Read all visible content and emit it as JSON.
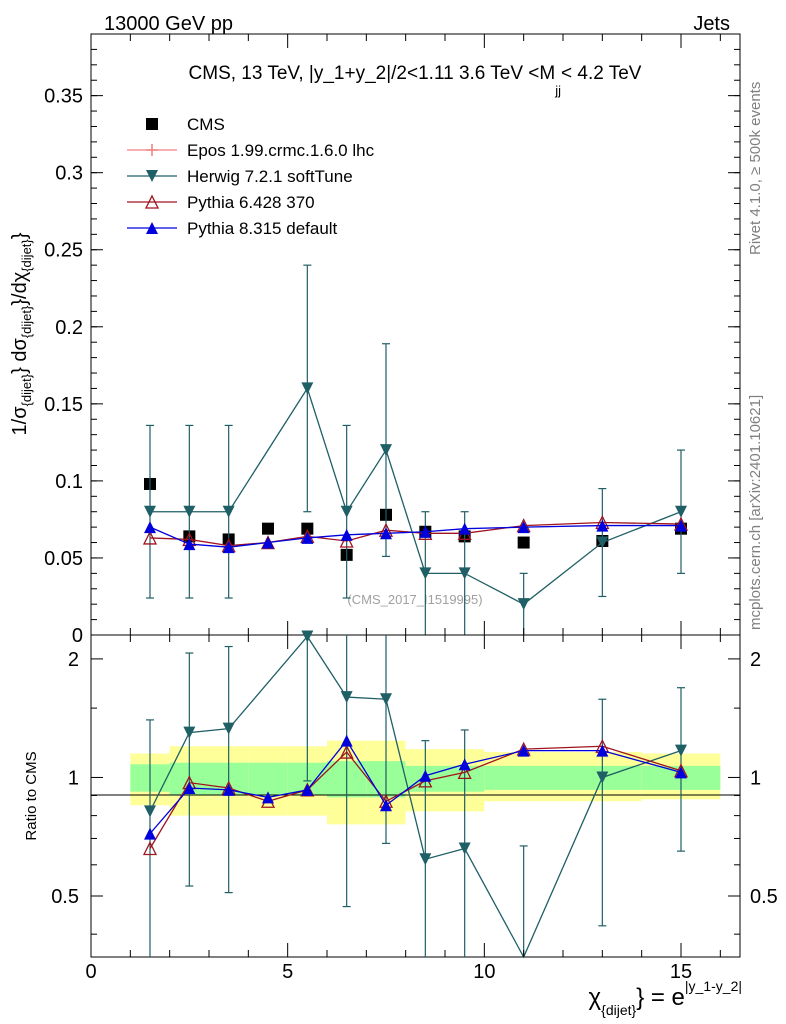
{
  "header": {
    "left": "13000 GeV pp",
    "right": "Jets"
  },
  "side_labels": {
    "rivet": "Rivet 4.1.0, ≥ 500k events",
    "mcplots": "mcplots.cern.ch [arXiv:2401.10621]"
  },
  "watermark": "(CMS_2017_I1519995)",
  "chart_data": {
    "type": "scatter",
    "title": "CMS, 13 TeV, |y_1+y_2|/2<1.11 3.6 TeV <M",
    "title_sub": "jj",
    "title_end": "< 4.2 TeV",
    "xlabel": {
      "main": "χ",
      "sub": "{dijet}",
      "mid": "} = e",
      "sup": "|y_1-y_2|"
    },
    "ylabel": {
      "p1": "1/σ",
      "s1": "{dijet}",
      "p2": "} dσ",
      "s2": "{dijet}",
      "p3": "}/dχ",
      "s3": "{dijet}",
      "p4": "}"
    },
    "ratio_ylabel": "Ratio to CMS",
    "xlim": [
      0,
      16.5
    ],
    "ylim": [
      0,
      0.39
    ],
    "ratio_ylim": [
      0.35,
      2.3
    ],
    "x_ticks": [
      "0",
      "5",
      "10",
      "15"
    ],
    "y_ticks": [
      "0",
      "0.05",
      "0.1",
      "0.15",
      "0.2",
      "0.25",
      "0.3",
      "0.35"
    ],
    "ratio_ticks": [
      "0.5",
      "1",
      "2"
    ],
    "bins": [
      [
        1,
        2
      ],
      [
        2,
        3
      ],
      [
        3,
        4
      ],
      [
        4,
        5
      ],
      [
        5,
        6
      ],
      [
        6,
        7
      ],
      [
        7,
        8
      ],
      [
        8,
        9
      ],
      [
        9,
        10
      ],
      [
        10,
        12
      ],
      [
        12,
        14
      ],
      [
        14,
        16
      ]
    ],
    "x": [
      1.5,
      2.5,
      3.5,
      4.5,
      5.5,
      6.5,
      7.5,
      8.5,
      9.5,
      11,
      13,
      15
    ],
    "band_inner": [
      [
        0.92,
        1.08
      ],
      [
        0.9,
        1.09
      ],
      [
        0.9,
        1.09
      ],
      [
        0.9,
        1.09
      ],
      [
        0.9,
        1.09
      ],
      [
        0.89,
        1.1
      ],
      [
        0.89,
        1.1
      ],
      [
        0.92,
        1.07
      ],
      [
        0.92,
        1.07
      ],
      [
        0.93,
        1.07
      ],
      [
        0.93,
        1.07
      ],
      [
        0.93,
        1.07
      ]
    ],
    "band_outer": [
      [
        0.85,
        1.15
      ],
      [
        0.8,
        1.2
      ],
      [
        0.8,
        1.2
      ],
      [
        0.8,
        1.2
      ],
      [
        0.8,
        1.2
      ],
      [
        0.76,
        1.24
      ],
      [
        0.76,
        1.24
      ],
      [
        0.82,
        1.18
      ],
      [
        0.82,
        1.18
      ],
      [
        0.87,
        1.16
      ],
      [
        0.87,
        1.16
      ],
      [
        0.88,
        1.15
      ]
    ],
    "series": [
      {
        "name": "CMS",
        "color": "#000000",
        "marker": "square",
        "values": [
          0.098,
          0.064,
          0.062,
          0.069,
          0.069,
          0.052,
          0.078,
          0.067,
          0.064,
          0.06,
          0.061,
          0.069
        ]
      },
      {
        "name": "Epos 1.99.crmc.1.6.0 lhc",
        "color": "#f08080",
        "marker": "cross",
        "values": [],
        "ratio": []
      },
      {
        "name": "Herwig 7.2.1 softTune",
        "color": "#1f5f66",
        "marker": "triangle-down",
        "values": [
          0.08,
          0.08,
          0.08,
          null,
          0.16,
          0.08,
          0.12,
          0.04,
          0.04,
          0.02,
          0.06,
          0.08
        ],
        "errors": [
          0.056,
          0.056,
          0.056,
          null,
          0.08,
          0.056,
          0.069,
          0.04,
          0.04,
          0.02,
          0.035,
          0.04
        ],
        "ratio": [
          0.82,
          1.3,
          1.33,
          null,
          2.28,
          1.6,
          1.58,
          0.62,
          0.66,
          0.33,
          1.0,
          1.17
        ],
        "ratio_errors": [
          0.58,
          0.77,
          0.82,
          null,
          1.3,
          1.13,
          0.9,
          0.62,
          0.66,
          0.34,
          0.58,
          0.52
        ]
      },
      {
        "name": "Pythia 6.428 370",
        "color": "#a0141e",
        "marker": "triangle-open",
        "values": [
          0.063,
          0.062,
          0.058,
          0.06,
          0.064,
          0.061,
          0.068,
          0.066,
          0.066,
          0.071,
          0.073,
          0.072
        ],
        "ratio": [
          0.66,
          0.97,
          0.94,
          0.87,
          0.93,
          1.16,
          0.87,
          0.98,
          1.03,
          1.18,
          1.2,
          1.04
        ]
      },
      {
        "name": "Pythia 8.315 default",
        "color": "#0000dd",
        "marker": "triangle-up",
        "values": [
          0.07,
          0.059,
          0.057,
          0.06,
          0.063,
          0.065,
          0.066,
          0.067,
          0.069,
          0.07,
          0.071,
          0.071
        ],
        "ratio": [
          0.72,
          0.94,
          0.93,
          0.89,
          0.93,
          1.24,
          0.85,
          1.01,
          1.08,
          1.17,
          1.17,
          1.03
        ]
      }
    ]
  }
}
